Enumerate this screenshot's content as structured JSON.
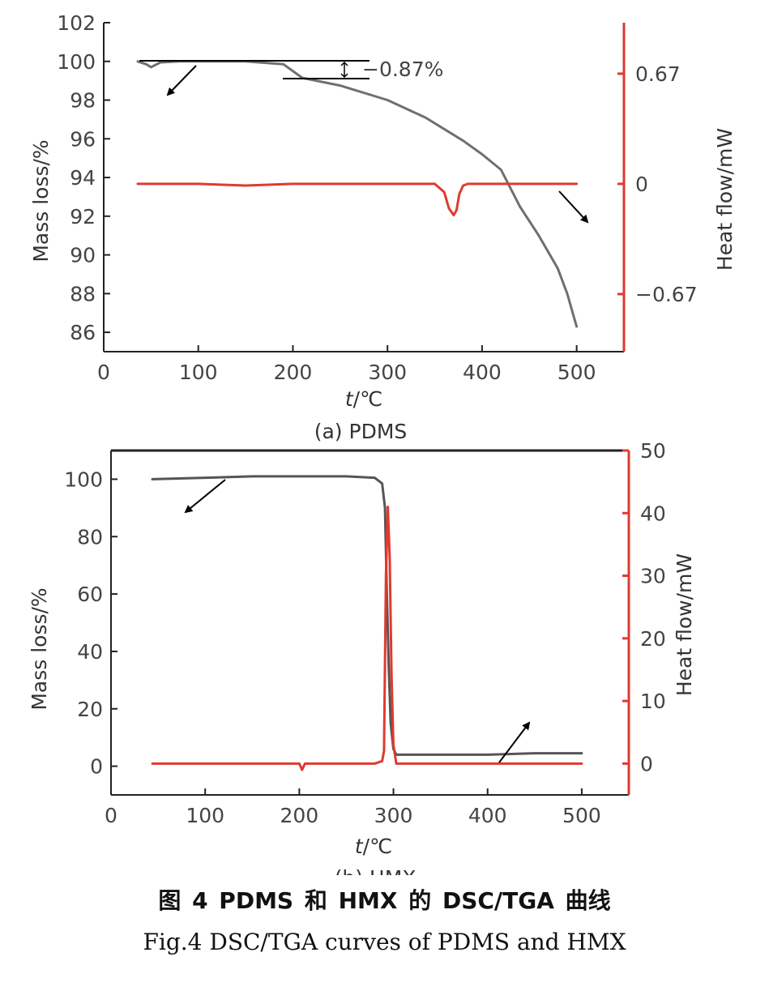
{
  "chart_data": [
    {
      "type": "line",
      "panel_label": "(a) PDMS",
      "xlabel_var": "t",
      "xlabel_unit": "/℃",
      "ylabel_left": "Mass loss/%",
      "ylabel_right": "Heat flow/mW",
      "xlim": [
        0,
        550
      ],
      "x_ticks": [
        0,
        100,
        200,
        300,
        400,
        500
      ],
      "ylim_left": [
        85,
        102
      ],
      "y_ticks_left": [
        86,
        88,
        90,
        92,
        94,
        96,
        98,
        100,
        102
      ],
      "ylim_right": [
        -1.02,
        0.98
      ],
      "y_ticks_right": [
        -0.67,
        0,
        0.67
      ],
      "y_tick_labels_right": [
        "−0.67",
        "0",
        "0.67"
      ],
      "annotation": "−0.87%",
      "series": [
        {
          "axis": "left",
          "color": "#6f6f6f",
          "x": [
            36,
            45,
            50,
            60,
            80,
            100,
            150,
            190,
            210,
            250,
            300,
            340,
            380,
            400,
            420,
            440,
            460,
            480,
            490,
            500
          ],
          "y": [
            100.0,
            99.85,
            99.7,
            99.95,
            100.0,
            100.0,
            100.0,
            99.85,
            99.15,
            98.75,
            98.0,
            97.1,
            95.9,
            95.2,
            94.4,
            92.5,
            91.0,
            89.3,
            88.0,
            86.3
          ]
        },
        {
          "axis": "right",
          "color": "#e03a2f",
          "x": [
            36,
            100,
            150,
            200,
            250,
            300,
            350,
            360,
            365,
            370,
            373,
            376,
            380,
            385,
            400,
            450,
            500
          ],
          "y": [
            0.0,
            0.0,
            -0.01,
            0.0,
            0.0,
            0.0,
            0.0,
            -0.05,
            -0.15,
            -0.19,
            -0.16,
            -0.06,
            -0.01,
            0.0,
            0.0,
            0.0,
            0.0
          ]
        }
      ]
    },
    {
      "type": "line",
      "panel_label": "(b) HMX",
      "xlabel_var": "t",
      "xlabel_unit": "/℃",
      "ylabel_left": "Mass loss/%",
      "ylabel_right": "Heat flow/mW",
      "xlim": [
        0,
        550
      ],
      "x_ticks": [
        0,
        100,
        200,
        300,
        400,
        500
      ],
      "ylim_left": [
        -10,
        110
      ],
      "y_ticks_left": [
        0,
        20,
        40,
        60,
        80,
        100
      ],
      "ylim_right": [
        -5,
        50
      ],
      "y_ticks_right": [
        0,
        10,
        20,
        30,
        40,
        50
      ],
      "y_tick_labels_right": [
        "0",
        "10",
        "20",
        "30",
        "40",
        "50"
      ],
      "series": [
        {
          "axis": "left",
          "color": "#555555",
          "x": [
            44,
            100,
            150,
            200,
            250,
            280,
            288,
            291,
            293,
            295,
            297,
            300,
            303,
            310,
            350,
            400,
            450,
            500
          ],
          "y": [
            100,
            100.5,
            101,
            101,
            101,
            100.5,
            98.5,
            90,
            60,
            35,
            15,
            6,
            4,
            4,
            4,
            4,
            4.5,
            4.5
          ]
        },
        {
          "axis": "right",
          "color": "#e03a2f",
          "x": [
            44,
            100,
            150,
            200,
            203,
            206,
            250,
            280,
            288,
            290,
            292,
            294,
            296,
            298,
            300,
            303,
            310,
            350,
            400,
            450,
            500
          ],
          "y": [
            0,
            0,
            0,
            0,
            -1,
            0,
            0,
            0,
            0.4,
            2,
            30,
            41,
            33,
            14,
            3,
            0,
            0,
            0,
            0,
            0,
            0
          ]
        }
      ]
    }
  ],
  "caption": {
    "chinese": "图 4  PDMS 和 HMX 的 DSC/TGA 曲线",
    "english": "Fig.4  DSC/TGA curves of PDMS and HMX"
  },
  "colors": {
    "heat_flow": "#e03a2f",
    "mass_loss": "#6f6f6f",
    "right_axis": "#e03a2f",
    "frame": "#222222"
  }
}
